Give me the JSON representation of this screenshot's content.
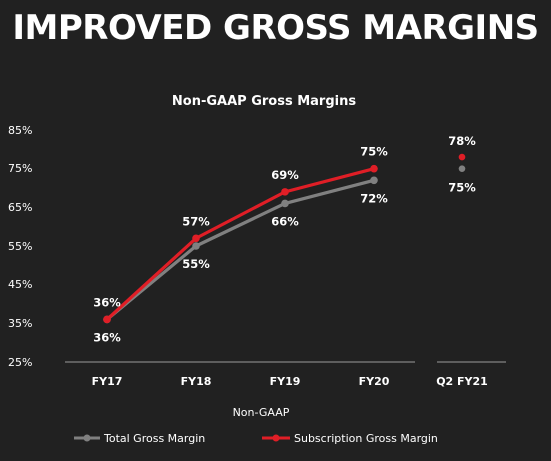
{
  "page": {
    "title": "IMPROVED GROSS MARGINS"
  },
  "colors": {
    "background": "#212121",
    "total": "#808080",
    "subscription": "#e01e26",
    "axis": "#9a9a9a"
  },
  "chart_data": {
    "type": "line",
    "title": "Non-GAAP Gross Margins",
    "xlabel": "Non-GAAP",
    "ylabel": "",
    "ylim": [
      25,
      85
    ],
    "yticks": [
      "25%",
      "35%",
      "45%",
      "55%",
      "65%",
      "75%",
      "85%"
    ],
    "grid": false,
    "legend_position": "bottom",
    "categories": [
      "FY17",
      "FY18",
      "FY19",
      "FY20"
    ],
    "series": [
      {
        "name": "Total Gross Margin",
        "values": [
          36,
          55,
          66,
          72
        ],
        "labels": [
          "36%",
          "55%",
          "66%",
          "72%"
        ]
      },
      {
        "name": "Subscription Gross Margin",
        "values": [
          36,
          57,
          69,
          75
        ],
        "labels": [
          "36%",
          "57%",
          "69%",
          "75%"
        ]
      }
    ],
    "side_point": {
      "category": "Q2 FY21",
      "subscription": {
        "value": 78,
        "label": "78%"
      },
      "total": {
        "value": 75,
        "label": "75%"
      }
    }
  }
}
